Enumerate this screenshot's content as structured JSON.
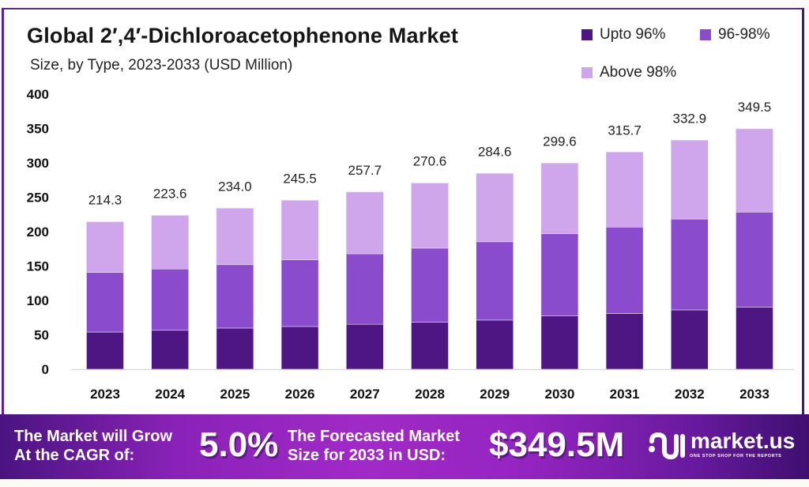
{
  "chart_data": {
    "type": "bar",
    "stacked": true,
    "title": "Global 2′,4′-Dichloroacetophenone Market",
    "subtitle": "Size, by Type, 2023-2033 (USD Million)",
    "xlabel": "",
    "ylabel": "",
    "ylim": [
      0,
      400
    ],
    "yticks": [
      0,
      50,
      100,
      150,
      200,
      250,
      300,
      350,
      400
    ],
    "grid": false,
    "legend_position": "top-right",
    "categories": [
      "2023",
      "2024",
      "2025",
      "2026",
      "2027",
      "2028",
      "2029",
      "2030",
      "2031",
      "2032",
      "2033"
    ],
    "series": [
      {
        "name": "Upto 96%",
        "color": "#4e1682",
        "values": [
          54.0,
          56.6,
          59.8,
          62.1,
          65.3,
          68.3,
          71.4,
          77.6,
          81.1,
          86.2,
          90.1
        ]
      },
      {
        "name": "96-98%",
        "color": "#8a4ccd",
        "values": [
          86.6,
          89.1,
          92.2,
          97.1,
          102.5,
          107.7,
          113.9,
          119.3,
          125.5,
          132.1,
          138.3
        ]
      },
      {
        "name": "Above 98%",
        "color": "#cfa6eb",
        "values": [
          73.7,
          77.9,
          82.0,
          86.3,
          89.9,
          94.6,
          99.3,
          102.7,
          109.1,
          114.6,
          121.1
        ]
      }
    ],
    "totals": [
      "214.3",
      "223.6",
      "234.0",
      "245.5",
      "257.7",
      "270.6",
      "284.6",
      "299.6",
      "315.7",
      "332.9",
      "349.5"
    ]
  },
  "banner": {
    "cagr_label_line1": "The Market will Grow",
    "cagr_label_line2": "At the CAGR of:",
    "cagr_value": "5.0%",
    "forecast_label_line1": "The Forecasted Market",
    "forecast_label_line2": "Size for 2033 in USD:",
    "forecast_value": "$349.5M",
    "logo_name": "market.us",
    "logo_tagline": "ONE STOP SHOP FOR THE REPORTS"
  }
}
